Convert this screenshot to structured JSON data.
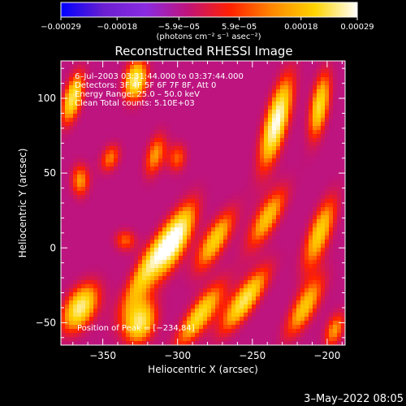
{
  "chart_data": {
    "type": "heatmap",
    "title": "Reconstructed RHESSI Image",
    "xlabel": "Heliocentric X (arcsec)",
    "ylabel": "Heliocentric Y (arcsec)",
    "xlim": [
      -378,
      -188
    ],
    "ylim": [
      -65,
      125
    ],
    "xticks": [
      -350,
      -300,
      -250,
      -200
    ],
    "xtick_labels": [
      "−350",
      "−300",
      "−250",
      "−200"
    ],
    "yticks": [
      -50,
      0,
      50,
      100
    ],
    "ytick_labels": [
      "−50",
      "0",
      "50",
      "100"
    ],
    "colorbar": {
      "min": -0.00029,
      "max": 0.00029,
      "tick_values": [
        -0.00029,
        -0.00018,
        -5.9e-05,
        5.9e-05,
        0.00018,
        0.00029
      ],
      "tick_labels": [
        "−0.00029",
        "−0.00018",
        "−5.9e−05",
        "5.9e−05",
        "0.00018",
        "0.00029"
      ],
      "units": "(photons cm⁻² s⁻¹ asec⁻²)",
      "colormap": [
        "#0000ff",
        "#6a1fd0",
        "#8a2be2",
        "#c0137a",
        "#ff2000",
        "#ff8800",
        "#ffd400",
        "#ffffff"
      ]
    },
    "annotations": [
      "6–Jul–2003 03:31:44.000 to 03:37:44.000",
      "Detectors: 3F 4F 5F 6F 7F 8F, Att 0",
      "Energy Range: 25.0 – 50.0 keV",
      "Clean    Total counts: 5.10E+03"
    ],
    "peak_text": "Position of Peak = [−234,84]",
    "peak": [
      -234,
      84
    ],
    "timestamp": "3–May–2022 08:05",
    "sources": [
      {
        "x": -370,
        "y": 100,
        "amp": 0.85,
        "sx": 5,
        "sy": 14,
        "angle": 15
      },
      {
        "x": -328,
        "y": 112,
        "amp": 0.9,
        "sx": 6,
        "sy": 11,
        "angle": 10
      },
      {
        "x": -365,
        "y": 45,
        "amp": 0.6,
        "sx": 5,
        "sy": 9,
        "angle": 0
      },
      {
        "x": -345,
        "y": 60,
        "amp": 0.55,
        "sx": 5,
        "sy": 8,
        "angle": 20
      },
      {
        "x": -315,
        "y": 62,
        "amp": 0.6,
        "sx": 5,
        "sy": 12,
        "angle": 15
      },
      {
        "x": -300,
        "y": 60,
        "amp": 0.5,
        "sx": 5,
        "sy": 8,
        "angle": 10
      },
      {
        "x": -234,
        "y": 84,
        "amp": 1.0,
        "sx": 6,
        "sy": 24,
        "angle": 15
      },
      {
        "x": -205,
        "y": 95,
        "amp": 0.8,
        "sx": 5,
        "sy": 18,
        "angle": 10
      },
      {
        "x": -335,
        "y": 5,
        "amp": 0.5,
        "sx": 6,
        "sy": 6,
        "angle": 0
      },
      {
        "x": -318,
        "y": -10,
        "amp": 0.8,
        "sx": 6,
        "sy": 26,
        "angle": 30
      },
      {
        "x": -300,
        "y": 5,
        "amp": 0.8,
        "sx": 6,
        "sy": 20,
        "angle": 25
      },
      {
        "x": -275,
        "y": 5,
        "amp": 0.75,
        "sx": 6,
        "sy": 18,
        "angle": 30
      },
      {
        "x": -240,
        "y": 20,
        "amp": 0.7,
        "sx": 6,
        "sy": 18,
        "angle": 30
      },
      {
        "x": -205,
        "y": 10,
        "amp": 0.75,
        "sx": 6,
        "sy": 20,
        "angle": 20
      },
      {
        "x": -365,
        "y": -40,
        "amp": 0.9,
        "sx": 8,
        "sy": 14,
        "angle": 30
      },
      {
        "x": -325,
        "y": -50,
        "amp": 0.85,
        "sx": 8,
        "sy": 12,
        "angle": 20
      },
      {
        "x": -285,
        "y": -45,
        "amp": 0.8,
        "sx": 6,
        "sy": 20,
        "angle": 35
      },
      {
        "x": -255,
        "y": -35,
        "amp": 0.85,
        "sx": 6,
        "sy": 20,
        "angle": 35
      },
      {
        "x": -215,
        "y": -40,
        "amp": 0.7,
        "sx": 6,
        "sy": 18,
        "angle": 30
      },
      {
        "x": -195,
        "y": -55,
        "amp": 0.6,
        "sx": 5,
        "sy": 10,
        "angle": 20
      }
    ]
  }
}
